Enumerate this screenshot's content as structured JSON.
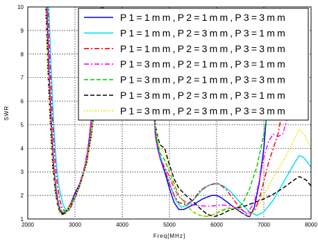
{
  "chart_data": {
    "type": "line",
    "title": "",
    "xlabel": "Freq[MHz]",
    "ylabel": "SWR",
    "xlim": [
      2000,
      8000
    ],
    "ylim": [
      1,
      10
    ],
    "xticks": [
      2000,
      3000,
      4000,
      5000,
      6000,
      7000,
      8000
    ],
    "yticks": [
      1,
      2,
      3,
      4,
      5,
      6,
      7,
      8,
      9,
      10
    ],
    "grid": true,
    "grid_style": "dotted",
    "legend_position": "top-right",
    "series": [
      {
        "name": "P1=1mm,P2=1mm,P3=3mm",
        "color": "#0000ff",
        "dash": "solid",
        "points": [
          [
            2400,
            10.2
          ],
          [
            2450,
            7.2
          ],
          [
            2500,
            5
          ],
          [
            2550,
            3.2
          ],
          [
            2600,
            2.2
          ],
          [
            2650,
            1.6
          ],
          [
            2700,
            1.3
          ],
          [
            2750,
            1.2
          ],
          [
            2800,
            1.25
          ],
          [
            2850,
            1.4
          ],
          [
            2900,
            1.6
          ],
          [
            2950,
            1.85
          ],
          [
            3000,
            2.1
          ],
          [
            3100,
            2.5
          ],
          [
            3200,
            3.1
          ],
          [
            3250,
            3.6
          ],
          [
            3300,
            4.4
          ],
          [
            3400,
            6.2
          ],
          [
            3500,
            8.5
          ],
          [
            3560,
            10.2
          ],
          null,
          [
            4650,
            6.1
          ],
          [
            4680,
            5.5
          ],
          [
            4700,
            4.6
          ],
          [
            4750,
            4.0
          ],
          [
            4800,
            3.6
          ],
          [
            4900,
            3.0
          ],
          [
            5000,
            2.3
          ],
          [
            5100,
            1.7
          ],
          [
            5200,
            1.4
          ],
          [
            5300,
            1.4
          ],
          [
            5500,
            1.6
          ],
          [
            5700,
            1.85
          ],
          [
            5900,
            2.0
          ],
          [
            6000,
            2.0
          ],
          [
            6100,
            1.9
          ],
          [
            6300,
            1.6
          ],
          [
            6500,
            1.3
          ],
          [
            6650,
            1.12
          ],
          [
            6700,
            1.1
          ],
          [
            6800,
            1.5
          ],
          [
            6900,
            2.5
          ],
          [
            7000,
            4.0
          ],
          [
            7100,
            6.5
          ],
          [
            7150,
            8.0
          ]
        ]
      },
      {
        "name": "P1=1mm,P2=3mm,P3=1mm",
        "color": "#00e0ff",
        "dash": "solid",
        "points": [
          [
            2440,
            10.2
          ],
          [
            2500,
            7.2
          ],
          [
            2550,
            5
          ],
          [
            2600,
            3.5
          ],
          [
            2650,
            2.5
          ],
          [
            2700,
            2.0
          ],
          [
            2750,
            1.6
          ],
          [
            2800,
            1.4
          ],
          [
            2850,
            1.35
          ],
          [
            2900,
            1.45
          ],
          [
            3000,
            1.9
          ],
          [
            3100,
            2.4
          ],
          [
            3200,
            3.1
          ],
          [
            3300,
            4.2
          ],
          [
            3400,
            6.0
          ],
          [
            3500,
            8.5
          ],
          [
            3560,
            10.2
          ],
          null,
          [
            4650,
            5.8
          ],
          [
            4700,
            4.9
          ],
          [
            4750,
            4.2
          ],
          [
            4800,
            3.7
          ],
          [
            4900,
            3.1
          ],
          [
            5000,
            2.5
          ],
          [
            5100,
            2.0
          ],
          [
            5150,
            1.75
          ],
          [
            5250,
            1.5
          ],
          [
            5400,
            1.6
          ],
          [
            5550,
            1.9
          ],
          [
            5700,
            2.25
          ],
          [
            5850,
            2.45
          ],
          [
            6000,
            2.5
          ],
          [
            6150,
            2.4
          ],
          [
            6300,
            2.15
          ],
          [
            6500,
            1.7
          ],
          [
            6700,
            1.3
          ],
          [
            6850,
            1.15
          ],
          [
            7000,
            1.3
          ],
          [
            7200,
            1.8
          ],
          [
            7400,
            2.5
          ],
          [
            7600,
            3.2
          ],
          [
            7750,
            3.7
          ],
          [
            7850,
            3.6
          ],
          [
            8000,
            3.2
          ]
        ]
      },
      {
        "name": "P1=1mm,P2=3mm,P3=3mm",
        "color": "#ff0000",
        "dash": "dashdot",
        "points": [
          [
            2420,
            10.2
          ],
          [
            2480,
            7.2
          ],
          [
            2530,
            5
          ],
          [
            2580,
            3.4
          ],
          [
            2630,
            2.4
          ],
          [
            2680,
            1.8
          ],
          [
            2730,
            1.45
          ],
          [
            2800,
            1.3
          ],
          [
            2850,
            1.3
          ],
          [
            2900,
            1.45
          ],
          [
            3000,
            1.9
          ],
          [
            3100,
            2.4
          ],
          [
            3200,
            3.1
          ],
          [
            3300,
            4.2
          ],
          [
            3400,
            6.0
          ],
          [
            3500,
            8.5
          ],
          [
            3560,
            10.2
          ],
          null,
          [
            4650,
            6.0
          ],
          [
            4700,
            4.8
          ],
          [
            4750,
            4.1
          ],
          [
            4800,
            3.6
          ],
          [
            4900,
            3.1
          ],
          [
            5000,
            2.5
          ],
          [
            5100,
            2.0
          ],
          [
            5200,
            1.7
          ],
          [
            5350,
            1.6
          ],
          [
            5500,
            1.8
          ],
          [
            5650,
            2.2
          ],
          [
            5800,
            2.4
          ],
          [
            5950,
            2.5
          ],
          [
            6050,
            2.5
          ],
          [
            6200,
            2.25
          ],
          [
            6350,
            1.85
          ],
          [
            6500,
            1.45
          ],
          [
            6650,
            1.2
          ],
          [
            6800,
            1.35
          ],
          [
            6900,
            1.8
          ],
          [
            7000,
            2.6
          ],
          [
            7100,
            3.4
          ],
          [
            7200,
            4.0
          ],
          [
            7300,
            4.6
          ],
          [
            7400,
            5.7
          ],
          [
            7500,
            7.0
          ],
          [
            7600,
            8.5
          ],
          [
            7650,
            9.3
          ]
        ]
      },
      {
        "name": "P1=3mm,P2=1mm,P3=1mm",
        "color": "#ff00ff",
        "dash": "dashdot",
        "points": [
          [
            2400,
            10.2
          ],
          [
            2450,
            7.2
          ],
          [
            2500,
            5
          ],
          [
            2550,
            3.3
          ],
          [
            2600,
            2.3
          ],
          [
            2650,
            1.7
          ],
          [
            2700,
            1.4
          ],
          [
            2750,
            1.25
          ],
          [
            2800,
            1.3
          ],
          [
            2850,
            1.45
          ],
          [
            2900,
            1.65
          ],
          [
            3000,
            2.0
          ],
          [
            3100,
            2.5
          ],
          [
            3200,
            3.2
          ],
          [
            3300,
            4.3
          ],
          [
            3400,
            6.2
          ],
          [
            3500,
            8.5
          ],
          [
            3560,
            10.2
          ],
          null,
          [
            4650,
            6.0
          ],
          [
            4700,
            4.7
          ],
          [
            4750,
            4.0
          ],
          [
            4800,
            3.6
          ],
          [
            4900,
            3.2
          ],
          [
            5000,
            2.8
          ],
          [
            5100,
            2.3
          ],
          [
            5200,
            1.95
          ],
          [
            5350,
            1.7
          ],
          [
            5500,
            1.6
          ],
          [
            5700,
            1.55
          ],
          [
            5900,
            1.55
          ],
          [
            6100,
            1.6
          ],
          [
            6300,
            1.55
          ],
          [
            6500,
            1.4
          ],
          [
            6650,
            1.25
          ],
          [
            6800,
            1.7
          ],
          [
            6900,
            2.6
          ],
          [
            7000,
            3.6
          ],
          [
            7100,
            4.3
          ],
          [
            7200,
            4.6
          ],
          [
            7300,
            4.5
          ],
          [
            7400,
            4.6
          ],
          [
            7500,
            5.3
          ],
          [
            7600,
            6.2
          ],
          [
            7700,
            7.5
          ],
          [
            7800,
            8.8
          ],
          [
            7850,
            9.4
          ]
        ]
      },
      {
        "name": "P1=3mm,P2=1mm,P3=3mm",
        "color": "#00cc00",
        "dash": "dash",
        "points": [
          [
            2380,
            10.2
          ],
          [
            2430,
            7.2
          ],
          [
            2480,
            5
          ],
          [
            2530,
            3.3
          ],
          [
            2580,
            2.3
          ],
          [
            2630,
            1.7
          ],
          [
            2680,
            1.4
          ],
          [
            2730,
            1.25
          ],
          [
            2780,
            1.3
          ],
          [
            2850,
            1.45
          ],
          [
            2950,
            1.75
          ],
          [
            3050,
            2.2
          ],
          [
            3150,
            2.7
          ],
          [
            3250,
            3.4
          ],
          [
            3350,
            4.6
          ],
          [
            3450,
            6.4
          ],
          [
            3550,
            8.8
          ],
          [
            3600,
            10.2
          ],
          null,
          [
            4650,
            6.2
          ],
          [
            4700,
            4.9
          ],
          [
            4750,
            4.2
          ],
          [
            4800,
            3.8
          ],
          [
            4900,
            3.5
          ],
          [
            5000,
            3.0
          ],
          [
            5100,
            2.5
          ],
          [
            5200,
            2.0
          ],
          [
            5350,
            1.6
          ],
          [
            5500,
            1.3
          ],
          [
            5650,
            1.15
          ],
          [
            5800,
            1.1
          ],
          [
            5950,
            1.2
          ],
          [
            6100,
            1.35
          ],
          [
            6250,
            1.45
          ],
          [
            6400,
            1.45
          ],
          [
            6550,
            1.65
          ],
          [
            6700,
            2.3
          ],
          [
            6850,
            3.2
          ],
          [
            7000,
            4.6
          ],
          [
            7150,
            6.5
          ],
          [
            7300,
            8.8
          ],
          [
            7350,
            10.2
          ]
        ]
      },
      {
        "name": "P1=3mm,P2=3mm,P3=1mm",
        "color": "#000000",
        "dash": "dash",
        "points": [
          [
            2380,
            10.2
          ],
          [
            2430,
            7.2
          ],
          [
            2480,
            5
          ],
          [
            2530,
            3.2
          ],
          [
            2580,
            2.2
          ],
          [
            2630,
            1.6
          ],
          [
            2680,
            1.3
          ],
          [
            2730,
            1.2
          ],
          [
            2780,
            1.25
          ],
          [
            2850,
            1.4
          ],
          [
            2950,
            1.75
          ],
          [
            3050,
            2.2
          ],
          [
            3150,
            2.7
          ],
          [
            3250,
            3.4
          ],
          [
            3350,
            4.6
          ],
          [
            3450,
            6.4
          ],
          [
            3550,
            8.8
          ],
          [
            3600,
            10.2
          ],
          null,
          [
            4650,
            6.5
          ],
          [
            4700,
            5.0
          ],
          [
            4750,
            4.5
          ],
          [
            4800,
            4.15
          ],
          [
            4900,
            4.0
          ],
          [
            5000,
            3.3
          ],
          [
            5100,
            2.7
          ],
          [
            5200,
            2.3
          ],
          [
            5350,
            2.0
          ],
          [
            5500,
            1.75
          ],
          [
            5650,
            1.45
          ],
          [
            5800,
            1.2
          ],
          [
            5950,
            1.1
          ],
          [
            6100,
            1.2
          ],
          [
            6250,
            1.35
          ],
          [
            6400,
            1.45
          ],
          [
            6600,
            1.55
          ],
          [
            6800,
            1.7
          ],
          [
            7000,
            1.85
          ],
          [
            7200,
            2.05
          ],
          [
            7400,
            2.3
          ],
          [
            7600,
            2.6
          ],
          [
            7750,
            2.8
          ],
          [
            7900,
            2.65
          ],
          [
            8000,
            2.4
          ]
        ]
      },
      {
        "name": "P1=3mm,P2=3mm,P3=3mm",
        "color": "#e6e600",
        "dash": "dot",
        "points": [
          [
            2380,
            10.2
          ],
          [
            2430,
            7.2
          ],
          [
            2480,
            5
          ],
          [
            2530,
            3.2
          ],
          [
            2580,
            2.2
          ],
          [
            2630,
            1.55
          ],
          [
            2680,
            1.25
          ],
          [
            2730,
            1.15
          ],
          [
            2780,
            1.2
          ],
          [
            2850,
            1.4
          ],
          [
            2950,
            1.75
          ],
          [
            3050,
            2.2
          ],
          [
            3150,
            2.7
          ],
          [
            3250,
            3.4
          ],
          [
            3350,
            4.6
          ],
          [
            3450,
            6.4
          ],
          [
            3550,
            8.8
          ],
          [
            3600,
            10.2
          ],
          null,
          [
            4650,
            6.3
          ],
          [
            4700,
            5.0
          ],
          [
            4750,
            4.4
          ],
          [
            4800,
            4.0
          ],
          [
            4900,
            3.8
          ],
          [
            5000,
            3.0
          ],
          [
            5100,
            2.4
          ],
          [
            5200,
            2.0
          ],
          [
            5350,
            1.6
          ],
          [
            5500,
            1.3
          ],
          [
            5650,
            1.15
          ],
          [
            5800,
            1.1
          ],
          [
            5950,
            1.2
          ],
          [
            6100,
            1.4
          ],
          [
            6250,
            1.5
          ],
          [
            6400,
            1.4
          ],
          [
            6550,
            1.2
          ],
          [
            6700,
            1.15
          ],
          [
            6850,
            1.4
          ],
          [
            7000,
            2.0
          ],
          [
            7150,
            2.6
          ],
          [
            7300,
            3.1
          ],
          [
            7450,
            3.6
          ],
          [
            7600,
            4.2
          ],
          [
            7750,
            4.8
          ],
          [
            7850,
            4.6
          ],
          [
            8000,
            4.0
          ]
        ]
      }
    ]
  }
}
